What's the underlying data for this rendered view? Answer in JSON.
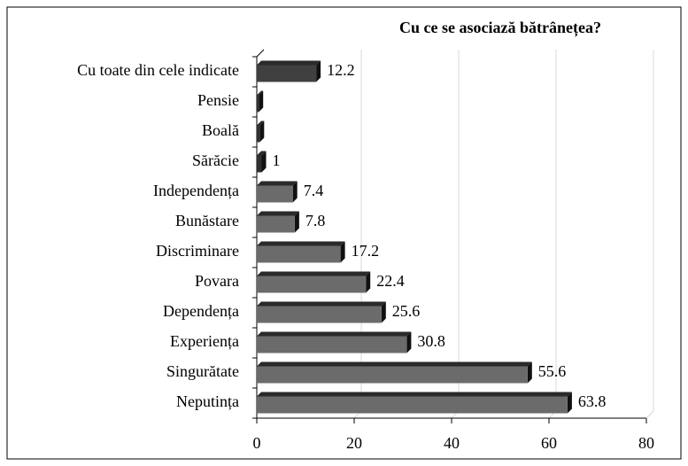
{
  "chart_data": {
    "type": "bar",
    "orientation": "horizontal",
    "title": "Cu ce se asociază bătrânețea?",
    "categories": [
      "Cu toate din cele indicate",
      "Pensie",
      "Boală",
      "Sărăcie",
      "Independența",
      "Bunăstare",
      "Discriminare",
      "Povara",
      "Dependența",
      "Experiența",
      "Singurătate",
      "Neputința"
    ],
    "values": [
      12.2,
      0.4,
      0.6,
      1,
      7.4,
      7.8,
      17.2,
      22.4,
      25.6,
      30.8,
      55.6,
      63.8
    ],
    "value_labels": [
      "12.2",
      null,
      null,
      "1",
      "7.4",
      "7.8",
      "17.2",
      "22.4",
      "25.6",
      "30.8",
      "55.6",
      "63.8"
    ],
    "colors": [
      "#404040",
      "#303030",
      "#303030",
      "#303030",
      "#6b6b6b",
      "#6b6b6b",
      "#6b6b6b",
      "#6b6b6b",
      "#6b6b6b",
      "#6b6b6b",
      "#6b6b6b",
      "#6b6b6b"
    ],
    "xlim": [
      0,
      80
    ],
    "xticks": [
      0,
      20,
      40,
      60,
      80
    ],
    "grid": true
  }
}
